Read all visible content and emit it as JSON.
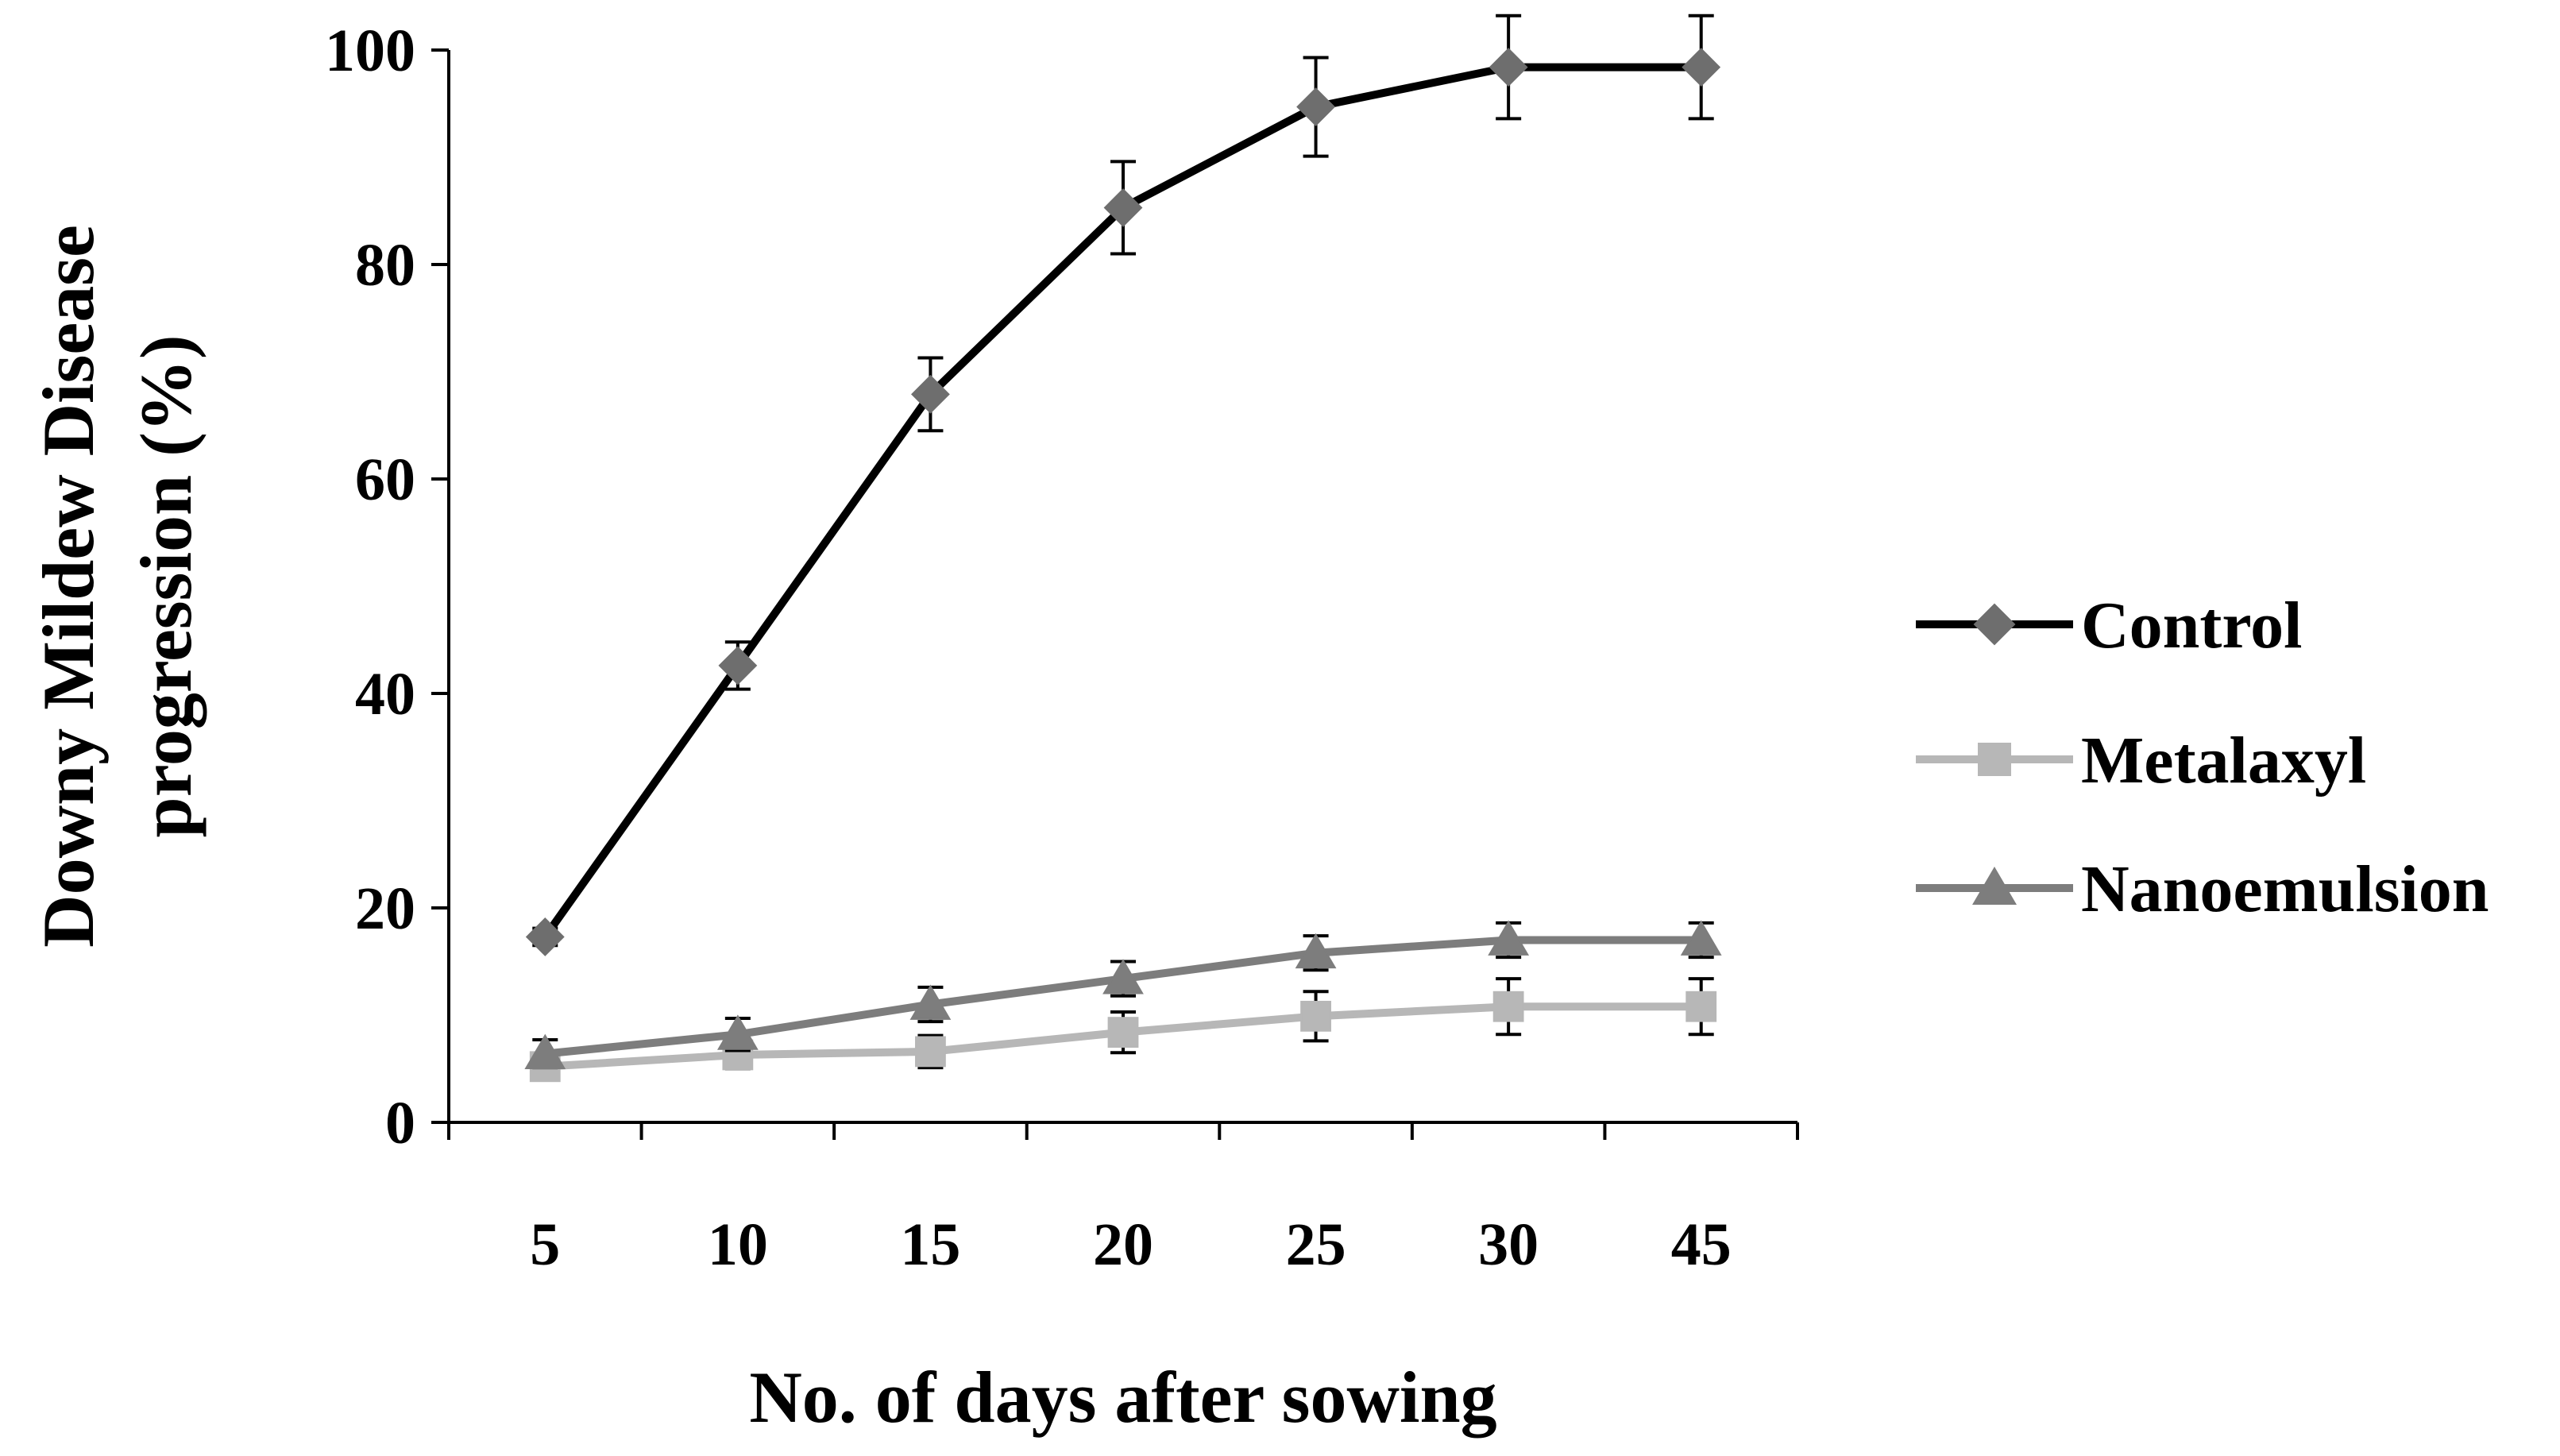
{
  "chart_data": {
    "type": "line",
    "title": "",
    "xlabel": "No. of  days after sowing",
    "ylabel_lines": [
      "Downy Mildew Disease",
      "progression (%)"
    ],
    "categories": [
      "5",
      "10",
      "15",
      "20",
      "25",
      "30",
      "45"
    ],
    "ylim": [
      0,
      100
    ],
    "yticks": [
      "0",
      "20",
      "40",
      "60",
      "80",
      "100"
    ],
    "ytick_values": [
      0,
      20,
      40,
      60,
      80,
      100
    ],
    "grid": false,
    "legend_position": "right",
    "error_bars": true,
    "series": [
      {
        "name": "Control",
        "values": [
          17.3,
          42.6,
          67.9,
          85.3,
          94.7,
          98.4,
          98.4
        ],
        "errors": [
          0.8,
          2.2,
          3.4,
          4.3,
          4.6,
          4.8,
          4.8
        ],
        "line_color": "#000000",
        "marker_color": "#6e6e6e",
        "marker": "diamond"
      },
      {
        "name": "Metalaxyl",
        "values": [
          5.2,
          6.3,
          6.6,
          8.4,
          9.9,
          10.8,
          10.8
        ],
        "errors": [
          1.0,
          1.3,
          1.5,
          1.9,
          2.3,
          2.6,
          2.6
        ],
        "line_color": "#b7b7b7",
        "marker_color": "#b7b7b7",
        "marker": "square"
      },
      {
        "name": "Nanoemulsion",
        "values": [
          6.4,
          8.2,
          11.0,
          13.4,
          15.8,
          17.0,
          17.0
        ],
        "errors": [
          1.3,
          1.5,
          1.6,
          1.6,
          1.6,
          1.6,
          1.6
        ],
        "line_color": "#7d7d7d",
        "marker_color": "#7d7d7d",
        "marker": "triangle"
      }
    ]
  }
}
